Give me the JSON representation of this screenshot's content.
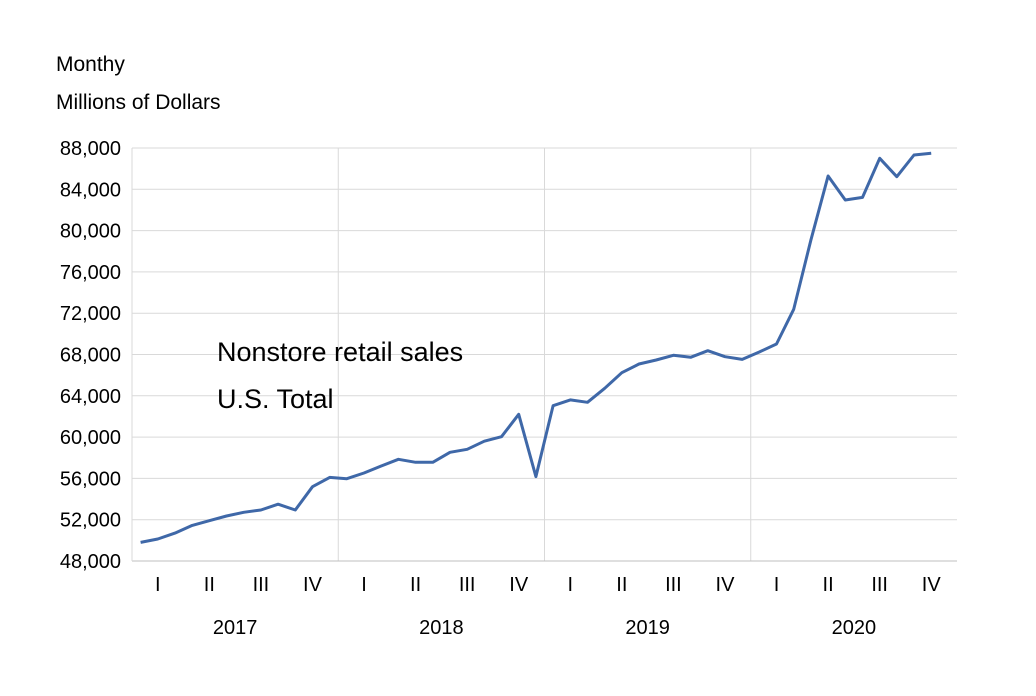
{
  "chart_data": {
    "type": "line",
    "title_lines": [
      "Monthy",
      "Millions of Dollars"
    ],
    "annotation_lines": [
      "Nonstore retail sales",
      "U.S. Total"
    ],
    "ylim": [
      48000,
      88000
    ],
    "yticks": [
      "48,000",
      "52,000",
      "56,000",
      "60,000",
      "64,000",
      "68,000",
      "72,000",
      "76,000",
      "80,000",
      "84,000",
      "88,000"
    ],
    "ytick_values": [
      48000,
      52000,
      56000,
      60000,
      64000,
      68000,
      72000,
      76000,
      80000,
      84000,
      88000
    ],
    "years": [
      "2017",
      "2018",
      "2019",
      "2020"
    ],
    "quarters": [
      "I",
      "II",
      "III",
      "IV"
    ],
    "grid": true,
    "line_color": "#3F68A8",
    "series": [
      {
        "start": "2017-01",
        "frequency": "monthly",
        "values": [
          49800,
          50130,
          50700,
          51450,
          51900,
          52360,
          52720,
          52940,
          53500,
          52940,
          55200,
          56100,
          55970,
          56520,
          57200,
          57850,
          57560,
          57560,
          58530,
          58820,
          59600,
          60040,
          62210,
          56170,
          63040,
          63600,
          63370,
          64730,
          66240,
          67080,
          67470,
          67920,
          67730,
          68370,
          67790,
          67530,
          68240,
          69020,
          72380,
          79090,
          85290,
          82960,
          83220,
          87000,
          85220,
          87320,
          87490
        ]
      }
    ]
  }
}
